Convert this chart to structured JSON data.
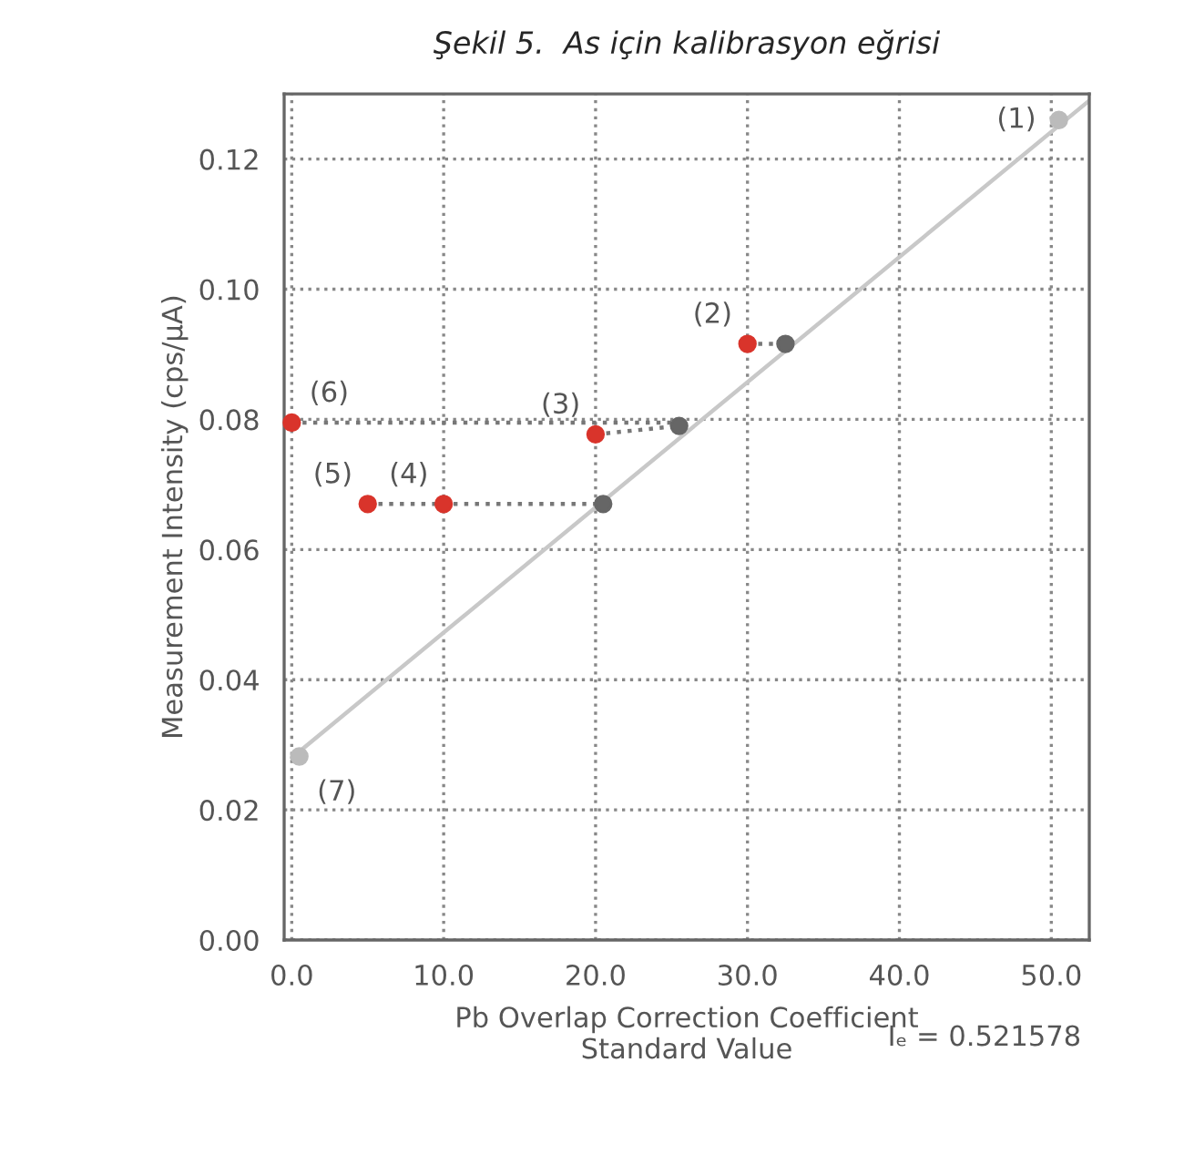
{
  "chart_data": {
    "type": "scatter",
    "title": "Şekil 5.  As için kalibrasyon eğrisi",
    "xlabel": "Pb Overlap Correction Coefficient\nStandard Value",
    "ylabel": "Measurement Intensity (cps/μA)",
    "series": [
      {
        "type": "line",
        "color": "#c8c8c8",
        "line_style": "solid",
        "marker": "none",
        "x": [
          0,
          52.5
        ],
        "values": [
          0.028,
          0.129
        ]
      },
      {
        "type": "line",
        "color": "#777777",
        "line_style": "dotted",
        "marker": "none",
        "x": [
          0,
          25.5,
          null,
          5,
          20.5,
          null,
          20,
          25.5,
          null,
          30,
          32.5
        ],
        "values": [
          0.0795,
          0.0795,
          null,
          0.067,
          0.067,
          null,
          0.0777,
          0.079,
          null,
          0.0916,
          0.0916
        ]
      },
      {
        "color": "#d9342b",
        "marker": "circle",
        "x": [
          30,
          20,
          10,
          5,
          0
        ],
        "values": [
          0.0916,
          0.0777,
          0.067,
          0.067,
          0.0795
        ]
      },
      {
        "color": "#666666",
        "marker": "circle",
        "x": [
          32.5,
          25.5,
          20.5
        ],
        "values": [
          0.0916,
          0.079,
          0.067
        ]
      },
      {
        "color": "#bbbbbb",
        "marker": "circle",
        "x": [
          50.5,
          0.5
        ],
        "values": [
          0.126,
          0.0282
        ]
      }
    ],
    "xlim": [
      -0.5,
      52.5
    ],
    "ylim": [
      0,
      0.13
    ],
    "xticks": [
      {
        "value": 0,
        "label": "0.0"
      },
      {
        "value": 10,
        "label": "10.0"
      },
      {
        "value": 20,
        "label": "20.0"
      },
      {
        "value": 30,
        "label": "30.0"
      },
      {
        "value": 40,
        "label": "40.0"
      },
      {
        "value": 50,
        "label": "50.0"
      }
    ],
    "yticks": [
      {
        "value": 0,
        "label": "0.00"
      },
      {
        "value": 0.02,
        "label": "0.02"
      },
      {
        "value": 0.04,
        "label": "0.04"
      },
      {
        "value": 0.06,
        "label": "0.06"
      },
      {
        "value": 0.08,
        "label": "0.08"
      },
      {
        "value": 0.1,
        "label": "0.10"
      },
      {
        "value": 0.12,
        "label": "0.12"
      }
    ],
    "grid": true,
    "legend": false,
    "annotations": [
      {
        "text": "(1)",
        "x": 50.5,
        "y": 0.126
      },
      {
        "text": "(2)",
        "x": 30,
        "y": 0.0916
      },
      {
        "text": "(3)",
        "x": 20,
        "y": 0.0777
      },
      {
        "text": "(4)",
        "x": 10,
        "y": 0.067
      },
      {
        "text": "(5)",
        "x": 5,
        "y": 0.067
      },
      {
        "text": "(6)",
        "x": 0,
        "y": 0.0795
      },
      {
        "text": "(7)",
        "x": 0.5,
        "y": 0.0282
      },
      "Iₑ = 0.521578"
    ]
  }
}
